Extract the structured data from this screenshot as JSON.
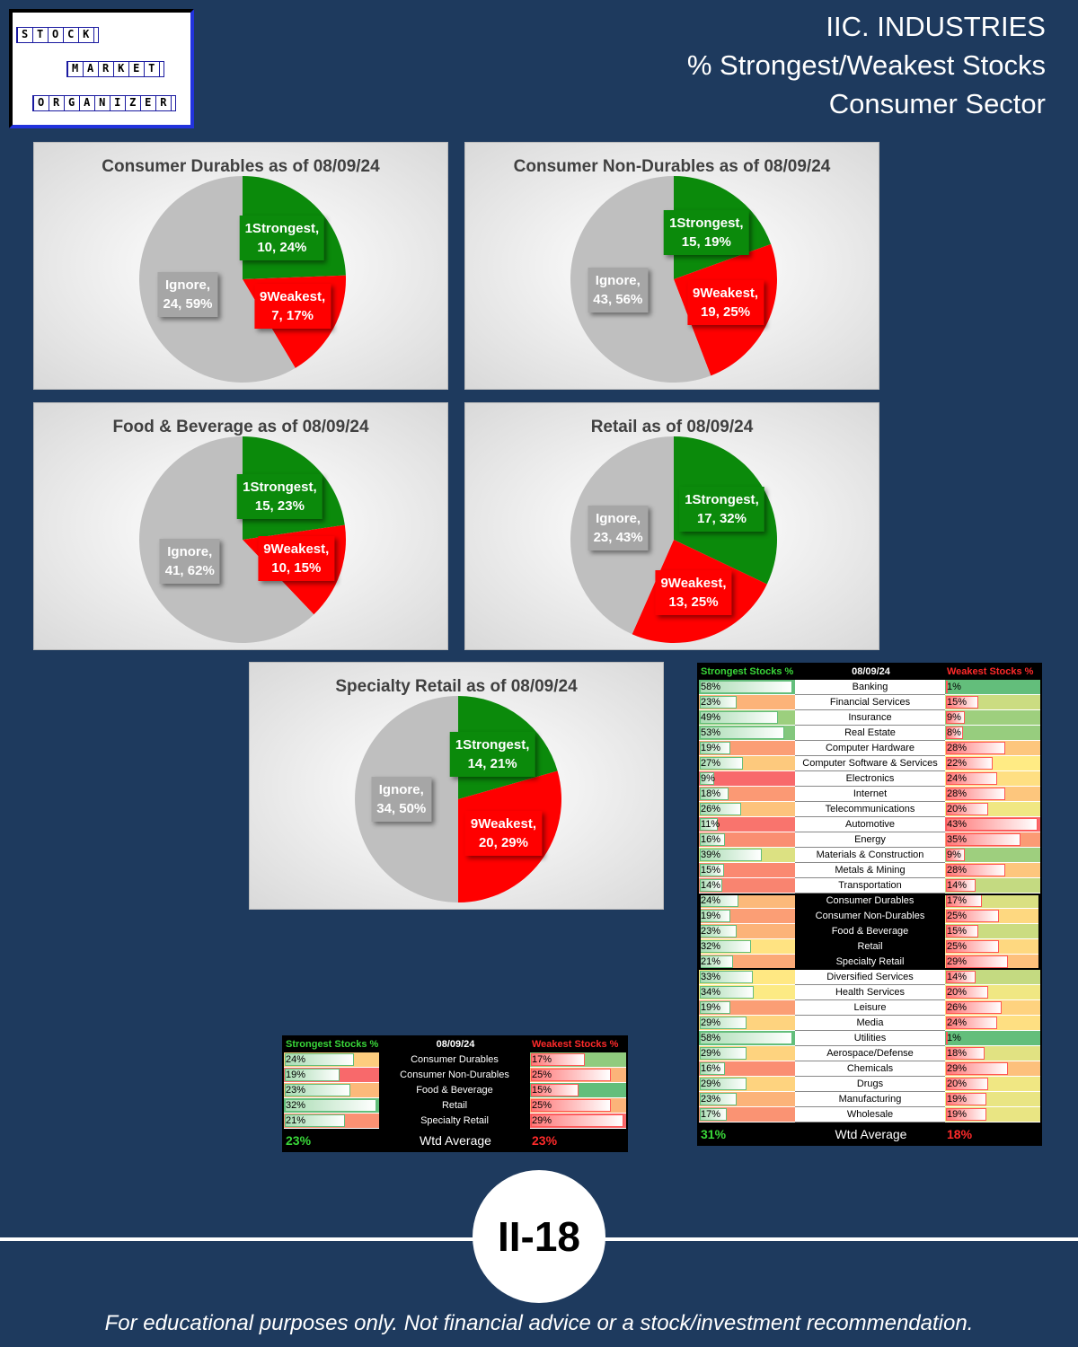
{
  "header": {
    "logo": [
      "STOCK",
      "MARKET",
      "ORGANIZER"
    ],
    "title": [
      "IIC. INDUSTRIES",
      "% Strongest/Weakest Stocks",
      "Consumer Sector"
    ]
  },
  "chart_data": [
    {
      "type": "pie",
      "title": "Consumer Durables as of 08/09/24",
      "categories": [
        "1Strongest",
        "9Weakest",
        "Ignore"
      ],
      "values": [
        10,
        7,
        24
      ],
      "value_labels": [
        "10, 24%",
        "7, 17%",
        "24, 59%"
      ],
      "colors": [
        "#0b8a0b",
        "#ff0000",
        "#bfbfbf"
      ]
    },
    {
      "type": "pie",
      "title": "Consumer Non-Durables as of 08/09/24",
      "categories": [
        "1Strongest",
        "9Weakest",
        "Ignore"
      ],
      "values": [
        15,
        19,
        43
      ],
      "value_labels": [
        "15, 19%",
        "19, 25%",
        "43, 56%"
      ],
      "colors": [
        "#0b8a0b",
        "#ff0000",
        "#bfbfbf"
      ]
    },
    {
      "type": "pie",
      "title": "Food & Beverage as of 08/09/24",
      "categories": [
        "1Strongest",
        "9Weakest",
        "Ignore"
      ],
      "values": [
        15,
        10,
        41
      ],
      "value_labels": [
        "15, 23%",
        "10, 15%",
        "41, 62%"
      ],
      "colors": [
        "#0b8a0b",
        "#ff0000",
        "#bfbfbf"
      ]
    },
    {
      "type": "pie",
      "title": "Retail as of 08/09/24",
      "categories": [
        "1Strongest",
        "9Weakest",
        "Ignore"
      ],
      "values": [
        17,
        13,
        23
      ],
      "value_labels": [
        "17, 32%",
        "13, 25%",
        "23, 43%"
      ],
      "colors": [
        "#0b8a0b",
        "#ff0000",
        "#bfbfbf"
      ]
    },
    {
      "type": "pie",
      "title": "Specialty Retail as of 08/09/24",
      "categories": [
        "1Strongest",
        "9Weakest",
        "Ignore"
      ],
      "values": [
        14,
        20,
        34
      ],
      "value_labels": [
        "14, 21%",
        "20, 29%",
        "34, 50%"
      ],
      "colors": [
        "#0b8a0b",
        "#ff0000",
        "#bfbfbf"
      ]
    }
  ],
  "small_table": {
    "header": [
      "Strongest Stocks %",
      "08/09/24",
      "Weakest Stocks %"
    ],
    "rows": [
      [
        "24%",
        "Consumer Durables",
        "17%"
      ],
      [
        "19%",
        "Consumer Non-Durables",
        "25%"
      ],
      [
        "23%",
        "Food & Beverage",
        "15%"
      ],
      [
        "32%",
        "Retail",
        "25%"
      ],
      [
        "21%",
        "Specialty Retail",
        "29%"
      ]
    ],
    "footer": [
      "23%",
      "Wtd Average",
      "23%"
    ]
  },
  "big_table": {
    "header": [
      "Strongest Stocks %",
      "08/09/24",
      "Weakest Stocks %"
    ],
    "groups": [
      [
        [
          "58%",
          "Banking",
          "1%"
        ],
        [
          "23%",
          "Financial Services",
          "15%"
        ],
        [
          "49%",
          "Insurance",
          "9%"
        ],
        [
          "53%",
          "Real Estate",
          "8%"
        ],
        [
          "19%",
          "Computer Hardware",
          "28%"
        ],
        [
          "27%",
          "Computer Software & Services",
          "22%"
        ],
        [
          "9%",
          "Electronics",
          "24%"
        ],
        [
          "18%",
          "Internet",
          "28%"
        ],
        [
          "26%",
          "Telecommunications",
          "20%"
        ],
        [
          "11%",
          "Automotive",
          "43%"
        ],
        [
          "16%",
          "Energy",
          "35%"
        ],
        [
          "39%",
          "Materials & Construction",
          "9%"
        ],
        [
          "15%",
          "Metals & Mining",
          "28%"
        ],
        [
          "14%",
          "Transportation",
          "14%"
        ]
      ],
      [
        [
          "24%",
          "Consumer Durables",
          "17%"
        ],
        [
          "19%",
          "Consumer Non-Durables",
          "25%"
        ],
        [
          "23%",
          "Food & Beverage",
          "15%"
        ],
        [
          "32%",
          "Retail",
          "25%"
        ],
        [
          "21%",
          "Specialty Retail",
          "29%"
        ]
      ],
      [
        [
          "33%",
          "Diversified Services",
          "14%"
        ],
        [
          "34%",
          "Health Services",
          "20%"
        ],
        [
          "19%",
          "Leisure",
          "26%"
        ],
        [
          "29%",
          "Media",
          "24%"
        ],
        [
          "58%",
          "Utilities",
          "1%"
        ],
        [
          "29%",
          "Aerospace/Defense",
          "18%"
        ],
        [
          "16%",
          "Chemicals",
          "29%"
        ],
        [
          "29%",
          "Drugs",
          "20%"
        ],
        [
          "23%",
          "Manufacturing",
          "19%"
        ],
        [
          "17%",
          "Wholesale",
          "19%"
        ]
      ]
    ],
    "footer": [
      "31%",
      "Wtd Average",
      "18%"
    ]
  },
  "page_label": "II-18",
  "disclaimer": "For educational purposes only. Not financial advice or a stock/investment recommendation."
}
